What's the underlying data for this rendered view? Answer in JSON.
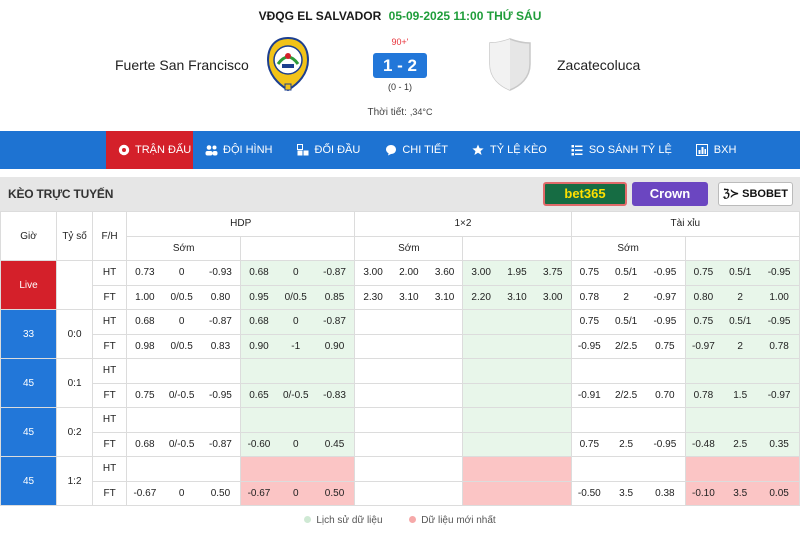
{
  "match": {
    "league": "VĐQG EL SALVADOR",
    "datetime": "05-09-2025 11:00 THỨ SÁU",
    "home": "Fuerte San Francisco",
    "away": "Zacatecoluca",
    "minute": "90+'",
    "score": "1 - 2",
    "ht_score": "(0 - 1)",
    "weather_label": "Thời tiết:",
    "weather_value": ",34°C",
    "home_logo_text": "C.D. FUERTE SAN FRANCISCO · MORAZAN",
    "home_logo_icon": "club-crest-icon",
    "away_logo_icon": "shield-placeholder-icon"
  },
  "nav": [
    {
      "label": "TRẬN ĐẤU",
      "icon": "soccer-ball-icon",
      "active": true
    },
    {
      "label": "ĐỘI HÌNH",
      "icon": "users-icon",
      "active": false
    },
    {
      "label": "ĐỐI ĐẦU",
      "icon": "versus-icon",
      "active": false
    },
    {
      "label": "CHI TIẾT",
      "icon": "chat-icon",
      "active": false
    },
    {
      "label": "TỶ LỆ KÈO",
      "icon": "star-icon",
      "active": false
    },
    {
      "label": "SO SÁNH TỶ LỆ",
      "icon": "list-icon",
      "active": false
    },
    {
      "label": "BXH",
      "icon": "bar-chart-icon",
      "active": false
    }
  ],
  "odds_panel": {
    "title": "KÈO TRỰC TUYẾN",
    "bookmakers": [
      "bet365",
      "Crown",
      "SBOBET"
    ]
  },
  "table": {
    "headers": {
      "time": "Giờ",
      "score": "Tỷ số",
      "fh": "F/H",
      "hdp": "HDP",
      "x12": "1×2",
      "ou": "Tài xỉu",
      "early": "Sớm",
      "live": "Live"
    },
    "groups": [
      {
        "time": "Live",
        "score": "",
        "rows": [
          {
            "fh": "HT",
            "c": [
              "0.73",
              "0",
              "-0.93",
              "0.68",
              "0",
              "-0.87",
              "3.00",
              "2.00",
              "3.60",
              "3.00",
              "1.95",
              "3.75",
              "0.75",
              "0.5/1",
              "-0.95",
              "0.75",
              "0.5/1",
              "-0.95"
            ]
          },
          {
            "fh": "FT",
            "c": [
              "1.00",
              "0/0.5",
              "0.80",
              "0.95",
              "0/0.5",
              "0.85",
              "2.30",
              "3.10",
              "3.10",
              "2.20",
              "3.10",
              "3.00",
              "0.78",
              "2",
              "-0.97",
              "0.80",
              "2",
              "1.00"
            ]
          }
        ]
      },
      {
        "time": "33",
        "score": "0:0",
        "rows": [
          {
            "fh": "HT",
            "c": [
              "0.68",
              "0",
              "-0.87",
              "0.68",
              "0",
              "-0.87",
              "",
              "",
              "",
              "",
              "",
              "",
              "0.75",
              "0.5/1",
              "-0.95",
              "0.75",
              "0.5/1",
              "-0.95"
            ]
          },
          {
            "fh": "FT",
            "c": [
              "0.98",
              "0/0.5",
              "0.83",
              "0.90",
              "-1",
              "0.90",
              "",
              "",
              "",
              "",
              "",
              "",
              "-0.95",
              "2/2.5",
              "0.75",
              "-0.97",
              "2",
              "0.78"
            ]
          }
        ]
      },
      {
        "time": "45",
        "score": "0:1",
        "rows": [
          {
            "fh": "HT",
            "c": [
              "",
              "",
              "",
              "",
              "",
              "",
              "",
              "",
              "",
              "",
              "",
              "",
              "",
              "",
              "",
              "",
              "",
              ""
            ]
          },
          {
            "fh": "FT",
            "c": [
              "0.75",
              "0/-0.5",
              "-0.95",
              "0.65",
              "0/-0.5",
              "-0.83",
              "",
              "",
              "",
              "",
              "",
              "",
              "-0.91",
              "2/2.5",
              "0.70",
              "0.78",
              "1.5",
              "-0.97"
            ]
          }
        ]
      },
      {
        "time": "45",
        "score": "0:2",
        "rows": [
          {
            "fh": "HT",
            "c": [
              "",
              "",
              "",
              "",
              "",
              "",
              "",
              "",
              "",
              "",
              "",
              "",
              "",
              "",
              "",
              "",
              "",
              ""
            ]
          },
          {
            "fh": "FT",
            "c": [
              "0.68",
              "0/-0.5",
              "-0.87",
              "-0.60",
              "0",
              "0.45",
              "",
              "",
              "",
              "",
              "",
              "",
              "0.75",
              "2.5",
              "-0.95",
              "-0.48",
              "2.5",
              "0.35"
            ]
          }
        ]
      },
      {
        "time": "45",
        "score": "1:2",
        "rows": [
          {
            "fh": "HT",
            "c": [
              "",
              "",
              "",
              "",
              "",
              "",
              "",
              "",
              "",
              "",
              "",
              "",
              "",
              "",
              "",
              "",
              "",
              ""
            ]
          },
          {
            "fh": "FT",
            "c": [
              "-0.67",
              "0",
              "0.50",
              "-0.67",
              "0",
              "0.50",
              "",
              "",
              "",
              "",
              "",
              "",
              "-0.50",
              "3.5",
              "0.38",
              "-0.10",
              "3.5",
              "0.05"
            ]
          }
        ]
      }
    ]
  },
  "legend": {
    "history": "Lịch sử dữ liệu",
    "latest": "Dữ liệu mới nhất"
  },
  "colors": {
    "nav_bg": "#1e73d2",
    "active_tab": "#d4202a",
    "live_header": "#2eaa4a",
    "live_cells": "#e8f6ea",
    "latest_cells": "#fbc5c5",
    "score_box": "#2277d9",
    "date_green": "#1f9d3a"
  }
}
